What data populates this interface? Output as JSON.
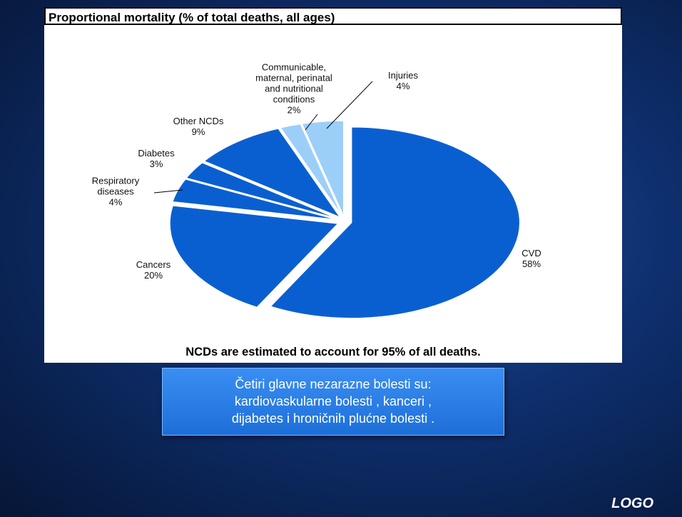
{
  "chart_data": {
    "type": "pie",
    "title": "Proportional mortality (% of total deaths, all ages)",
    "categories": [
      "CVD",
      "Cancers",
      "Respiratory diseases",
      "Diabetes",
      "Other NCDs",
      "Communicable, maternal, perinatal and nutritional conditions",
      "Injuries"
    ],
    "values": [
      58,
      20,
      4,
      3,
      9,
      2,
      4
    ],
    "value_labels": [
      "58%",
      "20%",
      "4%",
      "3%",
      "9%",
      "2%",
      "4%"
    ],
    "colors": [
      "#0a5fd0",
      "#0a5fd0",
      "#0a5fd0",
      "#0a5fd0",
      "#0a5fd0",
      "#9ccff8",
      "#9ccff8"
    ]
  },
  "caption": "NCDs are estimated to account for 95% of all deaths.",
  "text_box": {
    "lines": [
      "Četiri glavne nezarazne bolesti su:",
      "kardiovaskularne bolesti , kanceri ,",
      "dijabetes i hroničnih plućne bolesti ."
    ]
  },
  "logo": "LOGO"
}
